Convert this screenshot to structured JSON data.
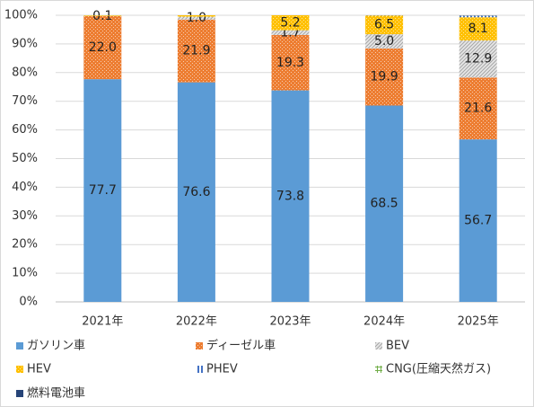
{
  "chart_data": {
    "type": "stacked_bar",
    "categories": [
      "2021年",
      "2022年",
      "2023年",
      "2024年",
      "2025年"
    ],
    "series": [
      {
        "name": "ガソリン車",
        "color": "#5b9bd5",
        "pattern": "solid",
        "values": [
          77.7,
          76.6,
          73.8,
          68.5,
          56.7
        ],
        "value_labels": [
          "77.7",
          "76.6",
          "73.8",
          "68.5",
          "56.7"
        ]
      },
      {
        "name": "ディーゼル車",
        "color": "#ed7d31",
        "pattern": "dots",
        "values": [
          22.0,
          21.9,
          19.3,
          19.9,
          21.6
        ],
        "value_labels": [
          "22.0",
          "21.9",
          "19.3",
          "19.9",
          "21.6"
        ]
      },
      {
        "name": "BEV",
        "color": "#a5a5a5",
        "pattern": "diagonal",
        "values": [
          0.1,
          1.0,
          1.7,
          5.0,
          12.9
        ],
        "value_labels": [
          "0.1",
          "1.0",
          "1.7",
          "5.0",
          "12.9"
        ]
      },
      {
        "name": "HEV",
        "color": "#ffc000",
        "pattern": "dots",
        "values": [
          0.2,
          0.5,
          5.2,
          6.5,
          8.1
        ],
        "value_labels": [
          null,
          null,
          "5.2",
          "6.5",
          "8.1"
        ]
      },
      {
        "name": "PHEV",
        "color": "#4472c4",
        "pattern": "vertical",
        "values": [
          0,
          0,
          0,
          0.1,
          0.5
        ]
      },
      {
        "name": "CNG(圧縮天然ガス)",
        "color": "#70ad47",
        "pattern": "grid",
        "values": [
          0,
          0,
          0,
          0,
          0.1
        ]
      },
      {
        "name": "燃料電池車",
        "color": "#264478",
        "pattern": "solid",
        "values": [
          0,
          0,
          0,
          0,
          0.1
        ]
      }
    ],
    "ylim": [
      0,
      100
    ],
    "yticks": [
      {
        "value": 0,
        "label": "0%"
      },
      {
        "value": 10,
        "label": "10%"
      },
      {
        "value": 20,
        "label": "20%"
      },
      {
        "value": 30,
        "label": "30%"
      },
      {
        "value": 40,
        "label": "40%"
      },
      {
        "value": 50,
        "label": "50%"
      },
      {
        "value": 60,
        "label": "60%"
      },
      {
        "value": 70,
        "label": "70%"
      },
      {
        "value": 80,
        "label": "80%"
      },
      {
        "value": 90,
        "label": "90%"
      },
      {
        "value": 100,
        "label": "100%"
      }
    ],
    "grid": true
  }
}
